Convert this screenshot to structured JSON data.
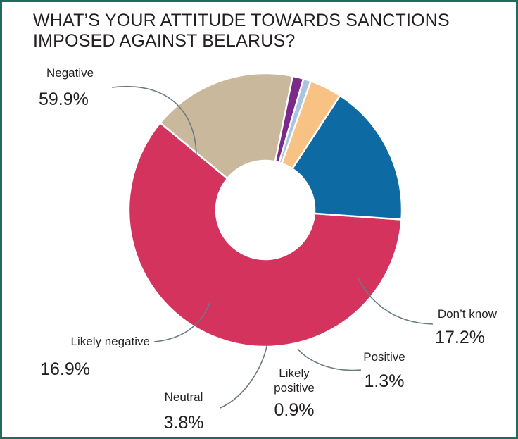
{
  "title": "WHAT’S YOUR ATTITUDE TOWARDS SANCTIONS IMPOSED AGAINST BELARUS?",
  "chart_data": {
    "type": "pie",
    "style": "donut",
    "title": "WHAT’S YOUR ATTITUDE TOWARDS SANCTIONS IMPOSED AGAINST BELARUS?",
    "slices": [
      {
        "label": "Negative",
        "value": 59.9,
        "value_label": "59.9%",
        "color": "#d4335e"
      },
      {
        "label": "Don’t know",
        "value": 17.2,
        "value_label": "17.2%",
        "color": "#c9b89b"
      },
      {
        "label": "Positive",
        "value": 1.3,
        "value_label": "1.3%",
        "color": "#7b2a8c"
      },
      {
        "label": "Likely positive",
        "value": 0.9,
        "value_label": "0.9%",
        "color": "#a9c4de"
      },
      {
        "label": "Neutral",
        "value": 3.8,
        "value_label": "3.8%",
        "color": "#f8c285"
      },
      {
        "label": "Likely negative",
        "value": 16.9,
        "value_label": "16.9%",
        "color": "#0e6aa3"
      }
    ]
  },
  "colors": {
    "frame": "#1f6b5c",
    "leader_line": "#6b7b82"
  }
}
